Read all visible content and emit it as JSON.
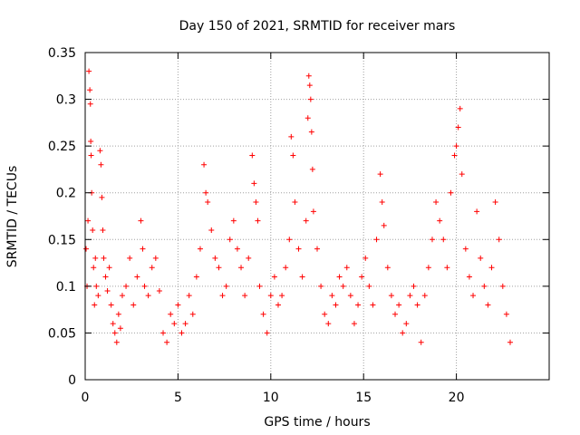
{
  "chart_data": {
    "type": "scatter",
    "title": "Day 150 of 2021, SRMTID for receiver mars",
    "xlabel": "GPS time / hours",
    "ylabel": "SRMTID / TECUs",
    "xlim": [
      0,
      25
    ],
    "ylim": [
      0,
      0.35
    ],
    "xticks": [
      0,
      5,
      10,
      15,
      20
    ],
    "xtick_labels": [
      "0",
      "5",
      "10",
      "15",
      "20"
    ],
    "yticks": [
      0,
      0.05,
      0.1,
      0.15,
      0.2,
      0.25,
      0.3,
      0.35
    ],
    "ytick_labels": [
      "0",
      "0.05",
      "0.1",
      "0.15",
      "0.2",
      "0.25",
      "0.3",
      "0.35"
    ],
    "grid": true,
    "marker": "+",
    "color": "#ff0000",
    "series": [
      {
        "name": "SRMTID",
        "points": [
          [
            0.05,
            0.14
          ],
          [
            0.1,
            0.1
          ],
          [
            0.15,
            0.17
          ],
          [
            0.2,
            0.33
          ],
          [
            0.25,
            0.31
          ],
          [
            0.28,
            0.295
          ],
          [
            0.3,
            0.255
          ],
          [
            0.32,
            0.24
          ],
          [
            0.35,
            0.2
          ],
          [
            0.4,
            0.16
          ],
          [
            0.45,
            0.12
          ],
          [
            0.5,
            0.08
          ],
          [
            0.55,
            0.13
          ],
          [
            0.6,
            0.1
          ],
          [
            0.7,
            0.09
          ],
          [
            0.8,
            0.245
          ],
          [
            0.85,
            0.23
          ],
          [
            0.9,
            0.195
          ],
          [
            0.95,
            0.16
          ],
          [
            1.0,
            0.13
          ],
          [
            1.1,
            0.11
          ],
          [
            1.2,
            0.095
          ],
          [
            1.3,
            0.12
          ],
          [
            1.4,
            0.08
          ],
          [
            1.5,
            0.06
          ],
          [
            1.6,
            0.05
          ],
          [
            1.7,
            0.04
          ],
          [
            1.8,
            0.07
          ],
          [
            1.9,
            0.055
          ],
          [
            2.0,
            0.09
          ],
          [
            2.2,
            0.1
          ],
          [
            2.4,
            0.13
          ],
          [
            2.6,
            0.08
          ],
          [
            2.8,
            0.11
          ],
          [
            3.0,
            0.17
          ],
          [
            3.1,
            0.14
          ],
          [
            3.2,
            0.1
          ],
          [
            3.4,
            0.09
          ],
          [
            3.6,
            0.12
          ],
          [
            3.8,
            0.13
          ],
          [
            4.0,
            0.095
          ],
          [
            4.2,
            0.05
          ],
          [
            4.4,
            0.04
          ],
          [
            4.6,
            0.07
          ],
          [
            4.8,
            0.06
          ],
          [
            5.0,
            0.08
          ],
          [
            5.2,
            0.05
          ],
          [
            5.4,
            0.06
          ],
          [
            5.6,
            0.09
          ],
          [
            5.8,
            0.07
          ],
          [
            6.0,
            0.11
          ],
          [
            6.2,
            0.14
          ],
          [
            6.4,
            0.23
          ],
          [
            6.5,
            0.2
          ],
          [
            6.6,
            0.19
          ],
          [
            6.8,
            0.16
          ],
          [
            7.0,
            0.13
          ],
          [
            7.2,
            0.12
          ],
          [
            7.4,
            0.09
          ],
          [
            7.6,
            0.1
          ],
          [
            7.8,
            0.15
          ],
          [
            8.0,
            0.17
          ],
          [
            8.2,
            0.14
          ],
          [
            8.4,
            0.12
          ],
          [
            8.6,
            0.09
          ],
          [
            8.8,
            0.13
          ],
          [
            9.0,
            0.24
          ],
          [
            9.1,
            0.21
          ],
          [
            9.2,
            0.19
          ],
          [
            9.3,
            0.17
          ],
          [
            9.4,
            0.1
          ],
          [
            9.6,
            0.07
          ],
          [
            9.8,
            0.05
          ],
          [
            10.0,
            0.09
          ],
          [
            10.2,
            0.11
          ],
          [
            10.4,
            0.08
          ],
          [
            10.6,
            0.09
          ],
          [
            10.8,
            0.12
          ],
          [
            11.0,
            0.15
          ],
          [
            11.1,
            0.26
          ],
          [
            11.2,
            0.24
          ],
          [
            11.3,
            0.19
          ],
          [
            11.5,
            0.14
          ],
          [
            11.7,
            0.11
          ],
          [
            11.9,
            0.17
          ],
          [
            12.0,
            0.28
          ],
          [
            12.05,
            0.325
          ],
          [
            12.1,
            0.315
          ],
          [
            12.15,
            0.3
          ],
          [
            12.2,
            0.265
          ],
          [
            12.25,
            0.225
          ],
          [
            12.3,
            0.18
          ],
          [
            12.5,
            0.14
          ],
          [
            12.7,
            0.1
          ],
          [
            12.9,
            0.07
          ],
          [
            13.1,
            0.06
          ],
          [
            13.3,
            0.09
          ],
          [
            13.5,
            0.08
          ],
          [
            13.7,
            0.11
          ],
          [
            13.9,
            0.1
          ],
          [
            14.1,
            0.12
          ],
          [
            14.3,
            0.09
          ],
          [
            14.5,
            0.06
          ],
          [
            14.7,
            0.08
          ],
          [
            14.9,
            0.11
          ],
          [
            15.1,
            0.13
          ],
          [
            15.3,
            0.1
          ],
          [
            15.5,
            0.08
          ],
          [
            15.7,
            0.15
          ],
          [
            15.9,
            0.22
          ],
          [
            16.0,
            0.19
          ],
          [
            16.1,
            0.165
          ],
          [
            16.3,
            0.12
          ],
          [
            16.5,
            0.09
          ],
          [
            16.7,
            0.07
          ],
          [
            16.9,
            0.08
          ],
          [
            17.1,
            0.05
          ],
          [
            17.3,
            0.06
          ],
          [
            17.5,
            0.09
          ],
          [
            17.7,
            0.1
          ],
          [
            17.9,
            0.08
          ],
          [
            18.1,
            0.04
          ],
          [
            18.3,
            0.09
          ],
          [
            18.5,
            0.12
          ],
          [
            18.7,
            0.15
          ],
          [
            18.9,
            0.19
          ],
          [
            19.1,
            0.17
          ],
          [
            19.3,
            0.15
          ],
          [
            19.5,
            0.12
          ],
          [
            19.7,
            0.2
          ],
          [
            19.9,
            0.24
          ],
          [
            20.0,
            0.25
          ],
          [
            20.1,
            0.27
          ],
          [
            20.2,
            0.29
          ],
          [
            20.3,
            0.22
          ],
          [
            20.5,
            0.14
          ],
          [
            20.7,
            0.11
          ],
          [
            20.9,
            0.09
          ],
          [
            21.1,
            0.18
          ],
          [
            21.3,
            0.13
          ],
          [
            21.5,
            0.1
          ],
          [
            21.7,
            0.08
          ],
          [
            21.9,
            0.12
          ],
          [
            22.1,
            0.19
          ],
          [
            22.3,
            0.15
          ],
          [
            22.5,
            0.1
          ],
          [
            22.7,
            0.07
          ],
          [
            22.9,
            0.04
          ]
        ]
      }
    ]
  }
}
